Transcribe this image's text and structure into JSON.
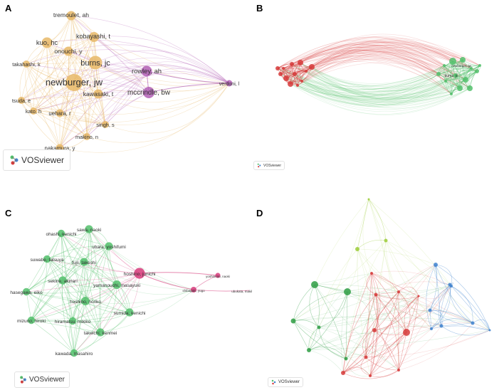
{
  "panels": {
    "A": {
      "letter": "A",
      "brand": "VOSviewer",
      "nodes": [
        {
          "id": "tremoulet",
          "label": "tremoulet, ah",
          "cluster": "yellow",
          "w": 0.45
        },
        {
          "id": "kobayashi",
          "label": "kobayashi, t",
          "cluster": "yellow",
          "w": 0.5
        },
        {
          "id": "kuo",
          "label": "kuo, hc",
          "cluster": "yellow",
          "w": 0.55
        },
        {
          "id": "onouchi",
          "label": "onouchi, y",
          "cluster": "yellow",
          "w": 0.45
        },
        {
          "id": "burns",
          "label": "burns, jc",
          "cluster": "yellow",
          "w": 0.75
        },
        {
          "id": "takahashi",
          "label": "takahashi, k",
          "cluster": "yellow",
          "w": 0.3
        },
        {
          "id": "newburger",
          "label": "newburger, jw",
          "cluster": "yellow",
          "w": 1.0
        },
        {
          "id": "kawasaki",
          "label": "kawasaki, t",
          "cluster": "yellow",
          "w": 0.45
        },
        {
          "id": "tsuda",
          "label": "tsuda, e",
          "cluster": "yellow",
          "w": 0.3
        },
        {
          "id": "kato",
          "label": "kato, h",
          "cluster": "yellow",
          "w": 0.3
        },
        {
          "id": "uehara",
          "label": "uehara, r",
          "cluster": "yellow",
          "w": 0.35
        },
        {
          "id": "singh",
          "label": "singh, s",
          "cluster": "yellow",
          "w": 0.3
        },
        {
          "id": "makino",
          "label": "makino, n",
          "cluster": "yellow",
          "w": 0.3
        },
        {
          "id": "nakamura",
          "label": "nakamura, y",
          "cluster": "yellow",
          "w": 0.35
        },
        {
          "id": "rowley",
          "label": "rowley, ah",
          "cluster": "purple",
          "w": 0.55
        },
        {
          "id": "mccrindle",
          "label": "mccrindle, bw",
          "cluster": "purple",
          "w": 0.6
        },
        {
          "id": "verdoni",
          "label": "verdoni, l",
          "cluster": "purple",
          "w": 0.25
        }
      ]
    },
    "B": {
      "letter": "B",
      "brand": "VOSviewer",
      "labels": [
        "newburger, jw",
        "burns, jc"
      ]
    },
    "C": {
      "letter": "C",
      "brand": "VOSviewer",
      "nodes": [
        {
          "id": "sawa",
          "label": "sawa, naoki",
          "cluster": "green",
          "w": 0.45
        },
        {
          "id": "ohashi",
          "label": "ohashi, kenichi",
          "cluster": "green",
          "w": 0.4
        },
        {
          "id": "ubara",
          "label": "ubara, yoshifumi",
          "cluster": "green",
          "w": 0.45
        },
        {
          "id": "suwabe",
          "label": "suwabe, tatsuya",
          "cluster": "green",
          "w": 0.4
        },
        {
          "id": "fujii",
          "label": "fujii, takeshi",
          "cluster": "green",
          "w": 0.45
        },
        {
          "id": "hoshino",
          "label": "hoshino, junichi",
          "cluster": "pink",
          "w": 0.7
        },
        {
          "id": "sekine",
          "label": "sekine, akinari",
          "cluster": "green",
          "w": 0.45
        },
        {
          "id": "yamanouchi",
          "label": "yamanouchi, masayuki",
          "cluster": "green",
          "w": 0.5
        },
        {
          "id": "hasegawa",
          "label": "hasegawa, eiko",
          "cluster": "green",
          "w": 0.4
        },
        {
          "id": "hoshino_r",
          "label": "hoshino, noriko",
          "cluster": "green",
          "w": 0.5
        },
        {
          "id": "sumida",
          "label": "sumida, kenichi",
          "cluster": "green",
          "w": 0.45
        },
        {
          "id": "mizuno",
          "label": "mizuno, hiroki",
          "cluster": "green",
          "w": 0.4
        },
        {
          "id": "hiramatsu",
          "label": "hiramatsu, mikiko",
          "cluster": "green",
          "w": 0.4
        },
        {
          "id": "takeichi",
          "label": "takeichi, kenmei",
          "cluster": "green",
          "w": 0.45
        },
        {
          "id": "kawada",
          "label": "kawada, masahiro",
          "cluster": "green",
          "w": 0.4
        },
        {
          "id": "yoshimoto",
          "label": "yoshimoto, naoki",
          "cluster": "pink",
          "w": 0.2
        },
        {
          "id": "shibagaki",
          "label": "shibagaki, yugo",
          "cluster": "pink",
          "w": 0.25
        },
        {
          "id": "ubukata",
          "label": "ubukata, makiko",
          "cluster": "pink",
          "w": 0.2
        }
      ]
    },
    "D": {
      "letter": "D",
      "brand": "VOSviewer"
    }
  },
  "colors": {
    "yellow": "#e8b867",
    "purple": "#b25fb5",
    "green": "#52c06b",
    "pink": "#d6397a",
    "red": "#d63a3a",
    "blue": "#3f82cf",
    "lime": "#9ccc3a",
    "darkgreen": "#2f9e44"
  }
}
